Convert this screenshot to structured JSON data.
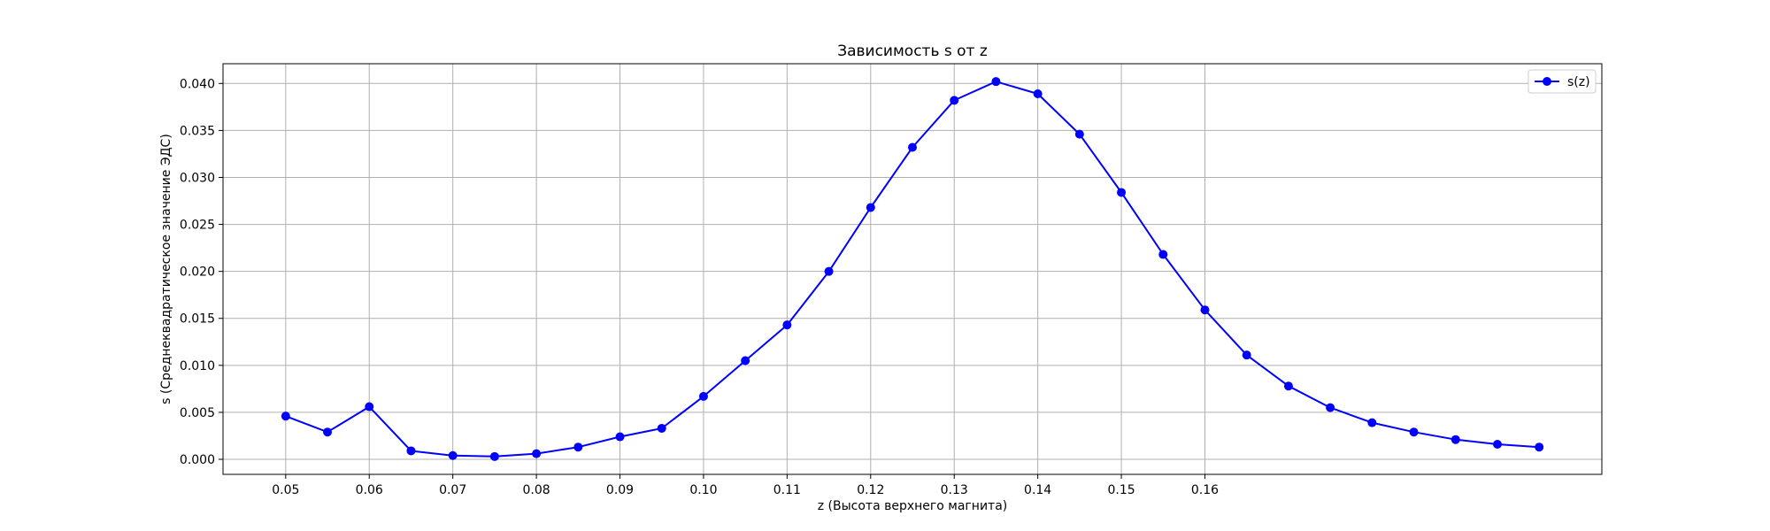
{
  "chart_data": {
    "type": "line",
    "title": "Зависимость s от z",
    "xlabel": "z (Высота верхнего магнита)",
    "ylabel": "s (Среднеквадратическое значение ЭДС)",
    "xlim": [
      0.0425,
      0.2075
    ],
    "ylim": [
      -0.0016,
      0.0421
    ],
    "xticks": [
      "0.05",
      "0.06",
      "0.07",
      "0.08",
      "0.09",
      "0.10",
      "0.11",
      "0.12",
      "0.13",
      "0.14",
      "0.15",
      "0.16"
    ],
    "yticks": [
      "0.000",
      "0.005",
      "0.010",
      "0.015",
      "0.020",
      "0.025",
      "0.030",
      "0.035",
      "0.040"
    ],
    "grid": true,
    "legend_position": "top-right",
    "series": [
      {
        "name": "s(z)",
        "color": "#0000ff",
        "marker": "circle",
        "x": [
          0.05,
          0.055,
          0.06,
          0.065,
          0.07,
          0.075,
          0.08,
          0.085,
          0.09,
          0.095,
          0.1,
          0.105,
          0.11,
          0.115,
          0.12,
          0.125,
          0.13,
          0.135,
          0.14,
          0.145,
          0.15,
          0.155,
          0.16,
          0.165,
          0.17,
          0.175,
          0.18,
          0.185,
          0.19,
          0.195,
          0.2
        ],
        "y": [
          0.0046,
          0.0029,
          0.0056,
          0.0009,
          0.0004,
          0.0003,
          0.0006,
          0.0013,
          0.0024,
          0.0033,
          0.0067,
          0.0105,
          0.0143,
          0.02,
          0.0268,
          0.0332,
          0.0382,
          0.0402,
          0.0389,
          0.0346,
          0.0284,
          0.0218,
          0.0159,
          0.0111,
          0.0078,
          0.0055,
          0.0039,
          0.0029,
          0.0021,
          0.0016,
          0.0013
        ]
      }
    ]
  }
}
